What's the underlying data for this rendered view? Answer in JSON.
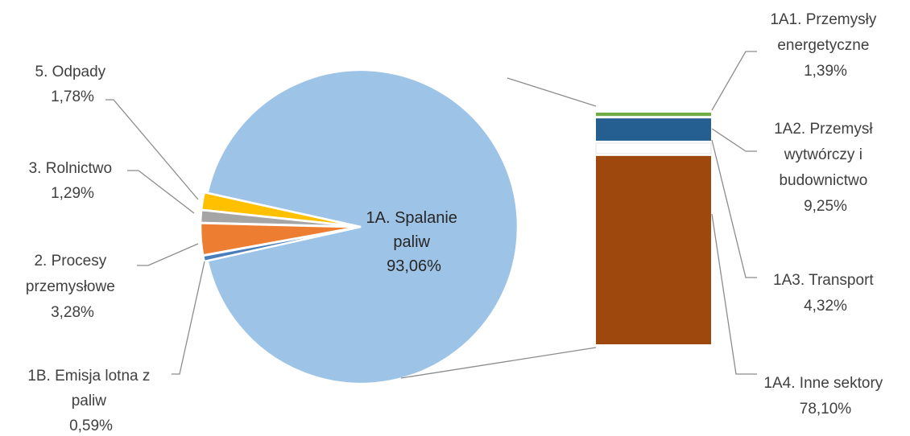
{
  "chart_data": {
    "type": "bar-of-pie",
    "pie": {
      "slices": [
        {
          "name": "1A. Spalanie paliw",
          "value": 93.06,
          "label": "93,06%",
          "color": "#9dc3e6"
        },
        {
          "name": "1B. Emisja lotna z paliw",
          "value": 0.59,
          "label": "0,59%",
          "color": "#4a7ebb"
        },
        {
          "name": "2. Procesy przemysłowe",
          "value": 3.28,
          "label": "3,28%",
          "color": "#ed7d31"
        },
        {
          "name": "3. Rolnictwo",
          "value": 1.29,
          "label": "1,29%",
          "color": "#a5a5a5"
        },
        {
          "name": "5. Odpady",
          "value": 1.78,
          "label": "1,78%",
          "color": "#ffc000"
        }
      ]
    },
    "bar": {
      "segments": [
        {
          "name": "1A1. Przemysły energetyczne",
          "value": 1.39,
          "label": "1,39%",
          "color": "#70ad47"
        },
        {
          "name": "1A2. Przemysł wytwórczy i budownictwo",
          "value": 9.25,
          "label": "9,25%",
          "color": "#255e91"
        },
        {
          "name": "1A3. Transport",
          "value": 4.32,
          "label": "4,32%",
          "color": "#ffffff"
        },
        {
          "name": "1A4. Inne sektory",
          "value": 78.1,
          "label": "78,10%",
          "color": "#9e480e"
        }
      ]
    },
    "labels": {
      "pie_center": [
        "1A. Spalanie",
        "paliw",
        "93,06%"
      ],
      "odpady": [
        "5. Odpady",
        "1,78%"
      ],
      "rolnictwo": [
        "3. Rolnictwo",
        "1,29%"
      ],
      "procesy": [
        "2. Procesy",
        "przemysłowe",
        "3,28%"
      ],
      "emisja": [
        "1B. Emisja lotna z",
        "paliw",
        "0,59%"
      ],
      "a1": [
        "1A1. Przemysły",
        "energetyczne",
        "1,39%"
      ],
      "a2": [
        "1A2. Przemysł",
        "wytwórczy i",
        "budownictwo",
        "9,25%"
      ],
      "a3": [
        "1A3. Transport",
        "4,32%"
      ],
      "a4": [
        "1A4. Inne sektory",
        "78,10%"
      ]
    }
  }
}
